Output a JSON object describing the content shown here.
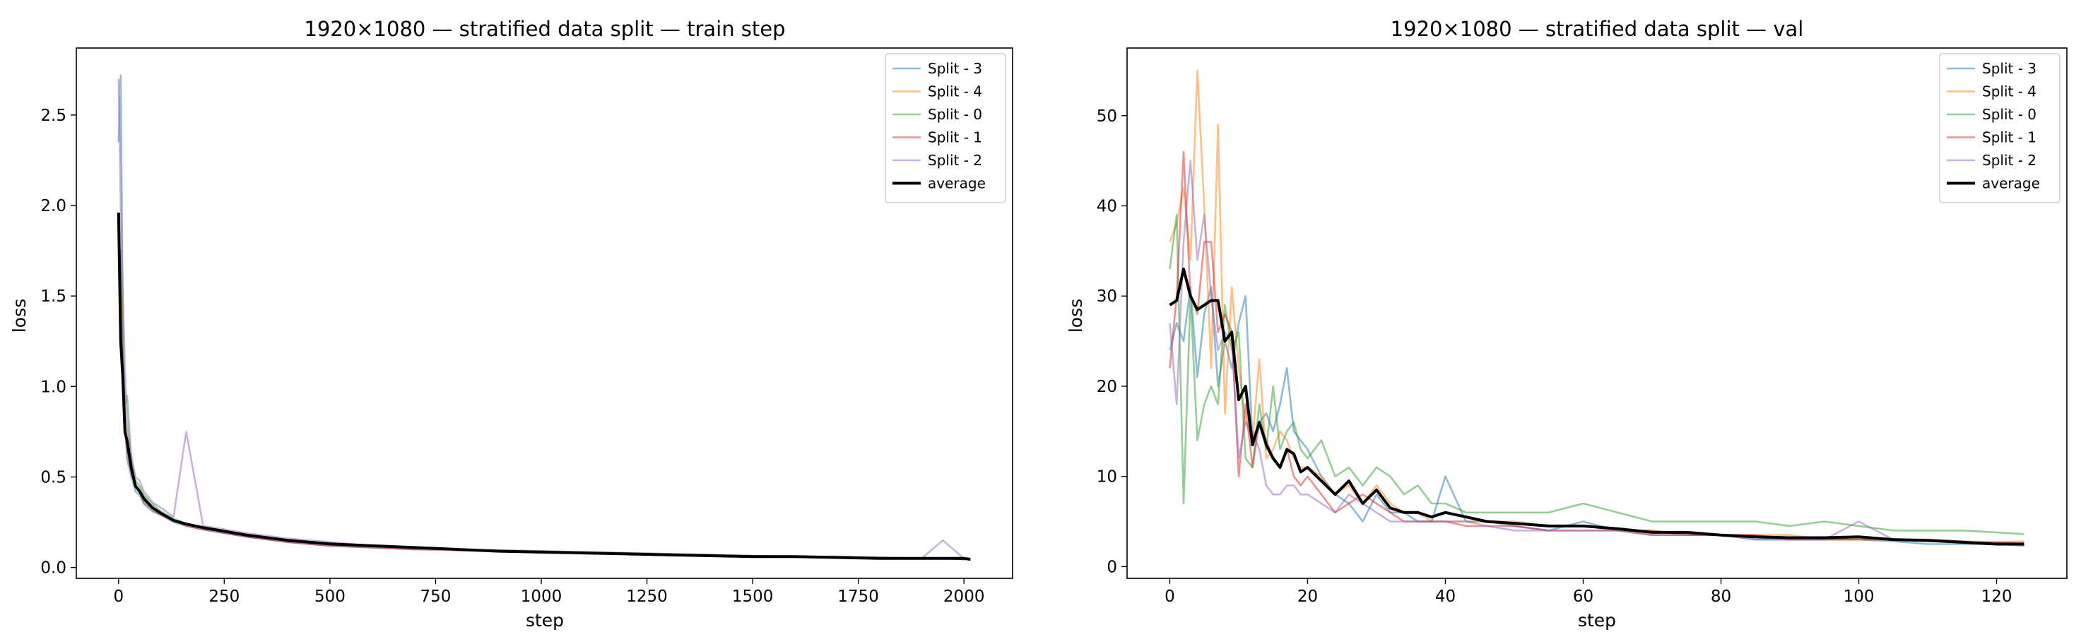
{
  "figure": {
    "charts": [
      {
        "title": "1920×1080 — stratified data split — train step",
        "xlabel": "step",
        "ylabel": "loss"
      },
      {
        "title": "1920×1080 — stratified data split — val",
        "xlabel": "step",
        "ylabel": "loss"
      }
    ]
  },
  "chart_data": [
    {
      "type": "line",
      "title": "1920×1080 — stratified data split — train step",
      "xlabel": "step",
      "ylabel": "loss",
      "xlim": [
        -100,
        2115
      ],
      "ylim": [
        -0.06,
        2.87
      ],
      "xticks": [
        0,
        250,
        500,
        750,
        1000,
        1250,
        1500,
        1750,
        2000
      ],
      "xtick_labels": [
        "0",
        "250",
        "500",
        "750",
        "1000",
        "1250",
        "1500",
        "1750",
        "2000"
      ],
      "yticks": [
        0.0,
        0.5,
        1.0,
        1.5,
        2.0,
        2.5
      ],
      "ytick_labels": [
        "0.0",
        "0.5",
        "1.0",
        "1.5",
        "2.0",
        "2.5"
      ],
      "grid": false,
      "legend_position": "top-right",
      "legend": [
        "Split - 3",
        "Split - 4",
        "Split - 0",
        "Split - 1",
        "Split - 2",
        "average"
      ],
      "x": [
        0,
        5,
        10,
        15,
        20,
        30,
        40,
        50,
        60,
        80,
        100,
        130,
        160,
        200,
        250,
        300,
        400,
        500,
        600,
        700,
        800,
        900,
        1000,
        1100,
        1200,
        1300,
        1400,
        1500,
        1600,
        1700,
        1800,
        1900,
        1950,
        2000,
        2015
      ],
      "series": [
        {
          "name": "Split - 3",
          "color": "#1f77b4",
          "values": [
            2.35,
            2.72,
            1.35,
            0.85,
            0.6,
            0.5,
            0.42,
            0.4,
            0.35,
            0.31,
            0.29,
            0.25,
            0.23,
            0.21,
            0.19,
            0.17,
            0.14,
            0.12,
            0.11,
            0.1,
            0.1,
            0.09,
            0.08,
            0.08,
            0.075,
            0.07,
            0.07,
            0.06,
            0.06,
            0.055,
            0.05,
            0.05,
            0.05,
            0.045,
            0.045
          ]
        },
        {
          "name": "Split - 4",
          "color": "#ff7f0e",
          "values": [
            1.95,
            1.6,
            1.1,
            0.8,
            0.75,
            0.55,
            0.46,
            0.43,
            0.38,
            0.33,
            0.3,
            0.26,
            0.24,
            0.22,
            0.2,
            0.18,
            0.15,
            0.13,
            0.12,
            0.11,
            0.1,
            0.09,
            0.085,
            0.08,
            0.075,
            0.07,
            0.065,
            0.06,
            0.06,
            0.055,
            0.05,
            0.05,
            0.05,
            0.05,
            0.045
          ]
        },
        {
          "name": "Split - 0",
          "color": "#2ca02c",
          "values": [
            1.7,
            1.75,
            1.2,
            0.9,
            0.95,
            0.6,
            0.48,
            0.45,
            0.4,
            0.35,
            0.31,
            0.27,
            0.24,
            0.22,
            0.2,
            0.18,
            0.15,
            0.13,
            0.12,
            0.11,
            0.1,
            0.095,
            0.09,
            0.085,
            0.08,
            0.075,
            0.07,
            0.065,
            0.06,
            0.06,
            0.055,
            0.05,
            0.05,
            0.05,
            0.05
          ]
        },
        {
          "name": "Split - 1",
          "color": "#d62728",
          "values": [
            1.85,
            1.5,
            1.05,
            0.75,
            0.65,
            0.52,
            0.45,
            0.42,
            0.36,
            0.32,
            0.29,
            0.26,
            0.23,
            0.21,
            0.19,
            0.17,
            0.14,
            0.12,
            0.11,
            0.1,
            0.095,
            0.09,
            0.085,
            0.08,
            0.075,
            0.07,
            0.065,
            0.06,
            0.06,
            0.055,
            0.05,
            0.05,
            0.05,
            0.045,
            0.045
          ]
        },
        {
          "name": "Split - 2",
          "color": "#9467bd",
          "values": [
            2.7,
            2.0,
            1.55,
            1.1,
            0.8,
            0.62,
            0.5,
            0.48,
            0.42,
            0.36,
            0.33,
            0.28,
            0.75,
            0.23,
            0.21,
            0.19,
            0.16,
            0.14,
            0.12,
            0.11,
            0.1,
            0.095,
            0.09,
            0.085,
            0.08,
            0.075,
            0.07,
            0.065,
            0.06,
            0.06,
            0.055,
            0.05,
            0.15,
            0.05,
            0.05
          ]
        },
        {
          "name": "average",
          "color": "#000000",
          "values": [
            1.96,
            1.25,
            1.05,
            0.75,
            0.7,
            0.55,
            0.45,
            0.42,
            0.38,
            0.33,
            0.3,
            0.26,
            0.24,
            0.22,
            0.2,
            0.18,
            0.15,
            0.13,
            0.12,
            0.11,
            0.1,
            0.09,
            0.085,
            0.08,
            0.075,
            0.07,
            0.065,
            0.06,
            0.06,
            0.055,
            0.05,
            0.05,
            0.05,
            0.05,
            0.045
          ]
        }
      ]
    },
    {
      "type": "line",
      "title": "1920×1080 — stratified data split — val",
      "xlabel": "step",
      "ylabel": "loss",
      "xlim": [
        -6.2,
        130.2
      ],
      "ylim": [
        -1.3,
        57.5
      ],
      "xticks": [
        0,
        20,
        40,
        60,
        80,
        100,
        120
      ],
      "xtick_labels": [
        "0",
        "20",
        "40",
        "60",
        "80",
        "100",
        "120"
      ],
      "yticks": [
        0,
        10,
        20,
        30,
        40,
        50
      ],
      "ytick_labels": [
        "0",
        "10",
        "20",
        "30",
        "40",
        "50"
      ],
      "grid": false,
      "legend_position": "top-right",
      "legend": [
        "Split - 3",
        "Split - 4",
        "Split - 0",
        "Split - 1",
        "Split - 2",
        "average"
      ],
      "x": [
        0,
        1,
        2,
        3,
        4,
        5,
        6,
        7,
        8,
        9,
        10,
        11,
        12,
        13,
        14,
        15,
        16,
        17,
        18,
        19,
        20,
        22,
        24,
        26,
        28,
        30,
        32,
        34,
        36,
        38,
        40,
        43,
        46,
        50,
        55,
        60,
        65,
        70,
        75,
        80,
        85,
        90,
        95,
        100,
        105,
        110,
        115,
        120,
        124
      ],
      "series": [
        {
          "name": "Split - 3",
          "color": "#1f77b4",
          "values": [
            24,
            27,
            25,
            31,
            21,
            28,
            31,
            20,
            25,
            22,
            27,
            30,
            14,
            16,
            17,
            15,
            18,
            22,
            15,
            14,
            13,
            10,
            8,
            7,
            5,
            8,
            6,
            6,
            5,
            5,
            10,
            5,
            5,
            4.5,
            4,
            5,
            4,
            4,
            3.5,
            3.5,
            3,
            3,
            3,
            3,
            2.8,
            2.5,
            2.5,
            2.5,
            2.3
          ]
        },
        {
          "name": "Split - 4",
          "color": "#ff7f0e",
          "values": [
            36,
            38,
            42,
            34,
            55,
            40,
            22,
            49,
            17,
            31,
            22,
            16,
            14,
            23,
            12,
            13,
            15,
            14,
            12,
            11,
            11,
            10,
            8,
            9,
            7,
            9,
            7,
            6,
            6,
            5,
            5,
            5,
            5,
            5,
            4.5,
            4.5,
            4,
            4,
            3.5,
            3.5,
            3.5,
            3.5,
            3,
            3,
            3,
            3,
            2.8,
            2.7,
            2.8
          ]
        },
        {
          "name": "Split - 0",
          "color": "#2ca02c",
          "values": [
            33,
            39,
            7,
            30,
            14,
            18,
            20,
            18,
            29,
            24,
            26,
            12,
            11,
            18,
            13,
            20,
            13,
            15,
            16,
            13,
            12,
            14,
            10,
            11,
            9,
            11,
            10,
            8,
            9,
            7,
            7,
            6,
            6,
            6,
            6,
            7,
            6,
            5,
            5,
            5,
            5,
            4.5,
            5,
            4.5,
            4,
            4,
            4,
            3.8,
            3.6
          ]
        },
        {
          "name": "Split - 1",
          "color": "#d62728",
          "values": [
            22,
            30,
            46,
            30,
            28,
            36,
            36,
            26,
            28,
            26,
            10,
            18,
            11,
            16,
            14,
            12,
            11,
            13,
            10,
            9,
            10,
            8,
            6,
            7,
            8,
            7,
            6,
            5,
            5,
            5,
            5,
            4.5,
            4.5,
            4.5,
            4,
            4,
            4,
            3.5,
            3.5,
            3.5,
            3.5,
            3,
            3,
            3,
            3,
            2.8,
            2.7,
            2.7,
            2.6
          ]
        },
        {
          "name": "Split - 2",
          "color": "#9467bd",
          "values": [
            27,
            18,
            36,
            45,
            34,
            39,
            30,
            24,
            26,
            25,
            12,
            16,
            15,
            13,
            9,
            8,
            8,
            9,
            9,
            8,
            8,
            7,
            6,
            8,
            7,
            6,
            5,
            5,
            5,
            5,
            5,
            5,
            4.5,
            4,
            4,
            4,
            4,
            3.5,
            3.5,
            3.5,
            3,
            3,
            3,
            5,
            3,
            3,
            2.8,
            2.5,
            2.4
          ]
        },
        {
          "name": "average",
          "color": "#000000",
          "values": [
            29,
            29.5,
            33,
            30,
            28.5,
            29,
            29.5,
            29.5,
            25,
            26,
            18.5,
            20,
            13.5,
            16,
            13.5,
            12,
            11,
            13,
            12.5,
            10.5,
            11,
            9.5,
            8,
            9.5,
            7,
            8.5,
            6.5,
            6,
            6,
            5.5,
            6,
            5.5,
            5,
            4.8,
            4.5,
            4.5,
            4.2,
            3.8,
            3.8,
            3.5,
            3.3,
            3.2,
            3.2,
            3.3,
            3,
            2.9,
            2.7,
            2.5,
            2.5
          ]
        }
      ]
    }
  ]
}
